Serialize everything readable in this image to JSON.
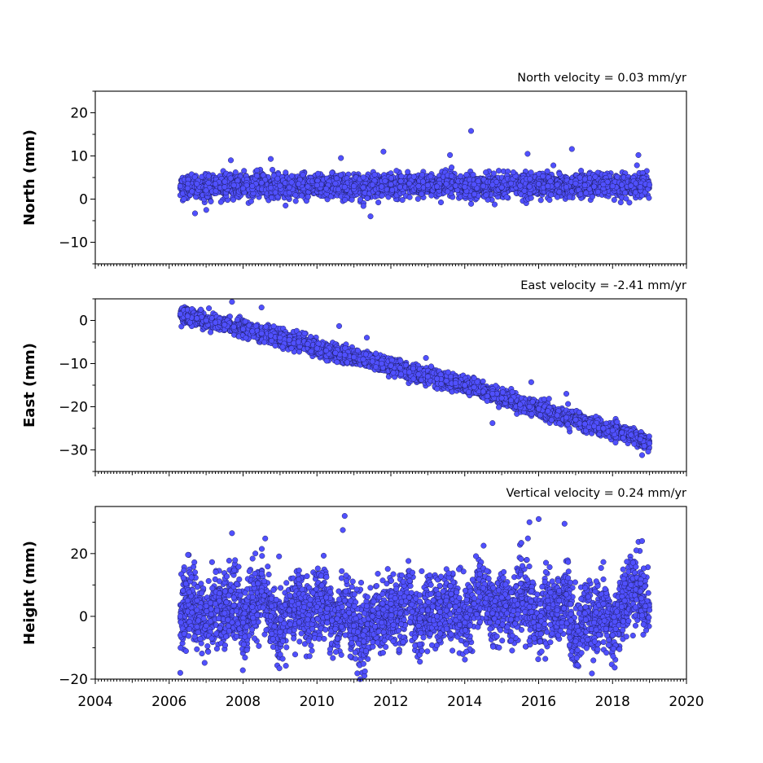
{
  "colors": {
    "marker_fill": "#5050ff",
    "marker_edge": "#1a1a55"
  },
  "chart_data": [
    {
      "type": "scatter",
      "title": "North velocity = 0.03 mm/yr",
      "xlabel": "",
      "ylabel": "North (mm)",
      "xlim": [
        2004,
        2020
      ],
      "ylim": [
        -15,
        25
      ],
      "yticks": [
        20,
        10,
        0,
        -10
      ],
      "ytick_labels": [
        "20",
        "10",
        "0",
        "−10"
      ],
      "series": [
        {
          "x": [
            2006.3,
            2006.5,
            2006.75,
            2007.0,
            2007.25,
            2007.5,
            2007.75,
            2008.0,
            2008.25,
            2008.5,
            2008.75,
            2009.0,
            2009.25,
            2009.5,
            2009.75,
            2010.0,
            2010.25,
            2010.5,
            2010.75,
            2011.0,
            2011.25,
            2011.5,
            2011.75,
            2012.0,
            2012.25,
            2012.5,
            2012.75,
            2013.0,
            2013.25,
            2013.5,
            2013.75,
            2014.0,
            2014.25,
            2014.5,
            2014.75,
            2015.0,
            2015.25,
            2015.5,
            2015.75,
            2016.0,
            2016.25,
            2016.5,
            2016.75,
            2017.0,
            2017.25,
            2017.5,
            2017.75,
            2018.0,
            2018.25,
            2018.5,
            2018.75,
            2019.0,
            2006.7,
            2007.67,
            2008.75,
            2010.65,
            2011.8,
            2013.6,
            2014.17,
            2015.7,
            2016.9,
            2018.7,
            2009.15,
            2011.45,
            2006.4
          ],
          "y": [
            3.0,
            2.5,
            3.5,
            2.0,
            3.5,
            2.8,
            3.2,
            2.5,
            3.0,
            3.8,
            2.6,
            3.1,
            2.7,
            3.5,
            2.9,
            3.2,
            2.4,
            3.6,
            2.8,
            3.0,
            2.7,
            3.3,
            2.9,
            3.4,
            2.8,
            3.6,
            3.0,
            3.2,
            2.9,
            3.5,
            3.1,
            2.8,
            3.4,
            3.0,
            3.3,
            2.7,
            3.6,
            3.1,
            2.9,
            3.5,
            3.0,
            3.3,
            2.8,
            3.6,
            3.2,
            2.9,
            3.4,
            3.0,
            3.3,
            3.1,
            2.8,
            3.3,
            -3.3,
            9.0,
            9.3,
            9.5,
            11.0,
            10.2,
            15.8,
            10.5,
            11.6,
            10.2,
            -1.5,
            -4.0,
            0.0
          ]
        }
      ]
    },
    {
      "type": "scatter",
      "title": "East velocity = -2.41 mm/yr",
      "xlabel": "",
      "ylabel": "East (mm)",
      "xlim": [
        2004,
        2020
      ],
      "ylim": [
        -35,
        5
      ],
      "yticks": [
        0,
        -10,
        -20,
        -30
      ],
      "ytick_labels": [
        "0",
        "−10",
        "−20",
        "−30"
      ],
      "series": [
        {
          "x": [
            2006.3,
            2006.5,
            2006.75,
            2007.0,
            2007.25,
            2007.5,
            2007.75,
            2008.0,
            2008.25,
            2008.5,
            2008.75,
            2009.0,
            2009.25,
            2009.5,
            2009.75,
            2010.0,
            2010.25,
            2010.5,
            2010.75,
            2011.0,
            2011.25,
            2011.5,
            2011.75,
            2012.0,
            2012.25,
            2012.5,
            2012.75,
            2013.0,
            2013.25,
            2013.5,
            2013.75,
            2014.0,
            2014.25,
            2014.5,
            2014.75,
            2015.0,
            2015.25,
            2015.5,
            2015.75,
            2016.0,
            2016.25,
            2016.5,
            2016.75,
            2017.0,
            2017.25,
            2017.5,
            2017.75,
            2018.0,
            2018.25,
            2018.5,
            2018.75,
            2019.0,
            2007.7,
            2008.5,
            2010.6,
            2011.35,
            2012.95,
            2013.55,
            2015.8,
            2016.75,
            2014.75,
            2018.8
          ],
          "y": [
            1.5,
            1.0,
            0.5,
            0.0,
            -0.5,
            -1.0,
            -1.5,
            -2.0,
            -2.5,
            -3.0,
            -3.5,
            -4.0,
            -4.5,
            -5.0,
            -5.5,
            -6.5,
            -7.0,
            -7.5,
            -8.0,
            -8.5,
            -9.0,
            -9.5,
            -10.0,
            -10.5,
            -11.0,
            -12.0,
            -12.5,
            -13.0,
            -13.5,
            -14.0,
            -14.5,
            -15.0,
            -15.5,
            -16.5,
            -17.0,
            -18.0,
            -18.5,
            -19.5,
            -20.0,
            -20.5,
            -21.0,
            -22.0,
            -22.5,
            -23.0,
            -24.0,
            -24.5,
            -25.0,
            -25.5,
            -26.0,
            -26.5,
            -27.5,
            -28.5,
            4.3,
            3.0,
            -1.3,
            -4.0,
            -8.7,
            -12.0,
            -14.3,
            -17.0,
            -23.8,
            -31.2
          ]
        }
      ]
    },
    {
      "type": "scatter",
      "title": "Vertical velocity = 0.24 mm/yr",
      "xlabel": "",
      "ylabel": "Height (mm)",
      "xlim": [
        2004,
        2020
      ],
      "ylim": [
        -20,
        35
      ],
      "yticks": [
        20,
        0,
        -20
      ],
      "ytick_labels": [
        "20",
        "0",
        "−20"
      ],
      "series": [
        {
          "x": [
            2006.3,
            2006.5,
            2006.75,
            2007.0,
            2007.25,
            2007.5,
            2007.75,
            2008.0,
            2008.25,
            2008.5,
            2008.75,
            2009.0,
            2009.25,
            2009.5,
            2009.75,
            2010.0,
            2010.25,
            2010.5,
            2010.75,
            2011.0,
            2011.25,
            2011.5,
            2011.75,
            2012.0,
            2012.25,
            2012.5,
            2012.75,
            2013.0,
            2013.25,
            2013.5,
            2013.75,
            2014.0,
            2014.25,
            2014.5,
            2014.75,
            2015.0,
            2015.25,
            2015.5,
            2015.75,
            2016.0,
            2016.25,
            2016.5,
            2016.75,
            2017.0,
            2017.25,
            2017.5,
            2017.75,
            2018.0,
            2018.25,
            2018.5,
            2018.75,
            2019.0,
            2006.3,
            2007.7,
            2008.6,
            2010.75,
            2010.7,
            2011.3,
            2015.75,
            2016.0,
            2016.7,
            2017.05,
            2018.8
          ],
          "y": [
            0.0,
            5.0,
            2.0,
            -3.0,
            4.0,
            1.0,
            6.0,
            -2.0,
            3.0,
            8.0,
            0.0,
            -5.0,
            2.0,
            4.0,
            -1.0,
            3.0,
            6.0,
            -4.0,
            5.0,
            -3.0,
            -6.0,
            0.0,
            -2.0,
            4.0,
            1.0,
            6.0,
            -3.0,
            2.0,
            0.0,
            5.0,
            3.0,
            -2.0,
            4.0,
            9.0,
            1.0,
            6.0,
            -1.0,
            8.0,
            3.0,
            -3.0,
            5.0,
            2.0,
            7.0,
            -8.0,
            1.0,
            -2.0,
            4.0,
            -6.0,
            3.0,
            10.0,
            8.0,
            2.0,
            -18.0,
            26.5,
            24.8,
            32.0,
            27.5,
            -17.5,
            30.0,
            31.0,
            29.5,
            -15.5,
            24.0
          ]
        }
      ]
    }
  ]
}
